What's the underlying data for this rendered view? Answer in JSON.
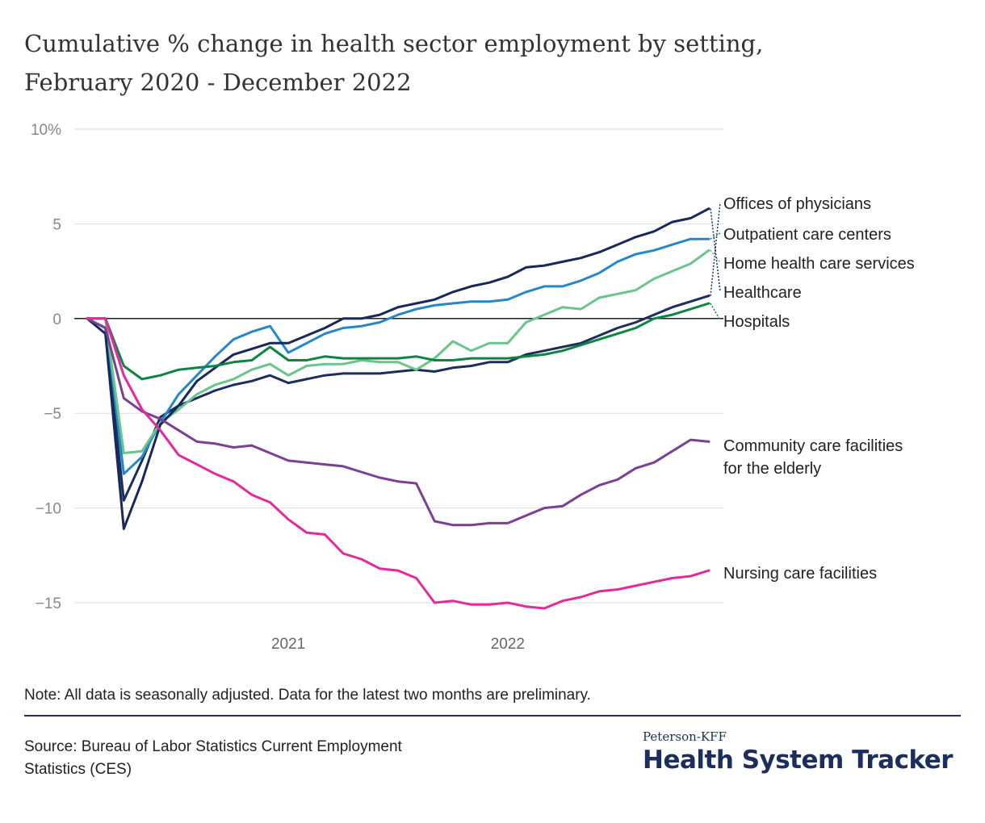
{
  "header": {
    "title_line1": "Cumulative % change in health sector employment by setting,",
    "title_line2": "February 2020 - December 2022"
  },
  "chart_data": {
    "type": "line",
    "title": "Cumulative % change in health sector employment by setting, February 2020 - December 2022",
    "xlabel": "",
    "ylabel": "",
    "x": [
      "2020-02",
      "2020-03",
      "2020-04",
      "2020-05",
      "2020-06",
      "2020-07",
      "2020-08",
      "2020-09",
      "2020-10",
      "2020-11",
      "2020-12",
      "2021-01",
      "2021-02",
      "2021-03",
      "2021-04",
      "2021-05",
      "2021-06",
      "2021-07",
      "2021-08",
      "2021-09",
      "2021-10",
      "2021-11",
      "2021-12",
      "2022-01",
      "2022-02",
      "2022-03",
      "2022-04",
      "2022-05",
      "2022-06",
      "2022-07",
      "2022-08",
      "2022-09",
      "2022-10",
      "2022-11",
      "2022-12"
    ],
    "x_ticks": [
      "2021",
      "2022"
    ],
    "x_tick_positions": [
      "2021-01",
      "2022-01"
    ],
    "ylim": [
      -15,
      10
    ],
    "y_ticks": [
      10,
      5,
      0,
      -5,
      -10,
      -15
    ],
    "y_tick_labels": [
      "10%",
      "5",
      "0",
      "−5",
      "−10",
      "−15"
    ],
    "grid": true,
    "legend": "direct-labels-right",
    "series": [
      {
        "name": "Offices of physicians",
        "color": "#1c2e5e",
        "values": [
          0,
          -0.5,
          -9.6,
          -7.5,
          -5.2,
          -4.6,
          -4.2,
          -3.8,
          -3.5,
          -3.3,
          -3.0,
          -3.4,
          -3.2,
          -3.0,
          -2.9,
          -2.9,
          -2.9,
          -2.8,
          -2.7,
          -2.8,
          -2.6,
          -2.5,
          -2.3,
          -2.3,
          -1.9,
          -1.7,
          -1.5,
          -1.3,
          -0.9,
          -0.5,
          -0.2,
          0.2,
          0.6,
          0.9,
          1.2
        ]
      },
      {
        "name": "Outpatient care centers",
        "color": "#2488c8",
        "values": [
          0,
          0,
          -8.2,
          -7.3,
          -5.5,
          -4.0,
          -3.0,
          -2.0,
          -1.1,
          -0.7,
          -0.4,
          -1.8,
          -1.3,
          -0.8,
          -0.5,
          -0.4,
          -0.2,
          0.2,
          0.5,
          0.7,
          0.8,
          0.9,
          0.9,
          1.0,
          1.4,
          1.7,
          1.7,
          2.0,
          2.4,
          3.0,
          3.4,
          3.6,
          3.9,
          4.2,
          4.2
        ]
      },
      {
        "name": "Home health care services",
        "color": "#69c58a",
        "values": [
          0,
          0,
          -7.1,
          -7.0,
          -5.5,
          -4.8,
          -4.0,
          -3.5,
          -3.2,
          -2.7,
          -2.4,
          -3.0,
          -2.5,
          -2.4,
          -2.4,
          -2.2,
          -2.3,
          -2.3,
          -2.7,
          -2.1,
          -1.2,
          -1.7,
          -1.3,
          -1.3,
          -0.2,
          0.2,
          0.6,
          0.5,
          1.1,
          1.3,
          1.5,
          2.1,
          2.5,
          2.9,
          3.6
        ]
      },
      {
        "name": "Healthcare",
        "color": "#17285a",
        "values": [
          0,
          -0.8,
          -11.1,
          -8.6,
          -5.6,
          -4.6,
          -3.3,
          -2.6,
          -1.9,
          -1.6,
          -1.3,
          -1.3,
          -0.9,
          -0.5,
          0.0,
          0.0,
          0.2,
          0.6,
          0.8,
          1.0,
          1.4,
          1.7,
          1.9,
          2.2,
          2.7,
          2.8,
          3.0,
          3.2,
          3.5,
          3.9,
          4.3,
          4.6,
          5.1,
          5.3,
          5.8
        ]
      },
      {
        "name": "Hospitals",
        "color": "#0e8442",
        "values": [
          0,
          0,
          -2.5,
          -3.2,
          -3.0,
          -2.7,
          -2.6,
          -2.5,
          -2.3,
          -2.2,
          -1.5,
          -2.2,
          -2.2,
          -2.0,
          -2.1,
          -2.1,
          -2.1,
          -2.1,
          -2.0,
          -2.2,
          -2.2,
          -2.1,
          -2.1,
          -2.1,
          -2.0,
          -1.9,
          -1.7,
          -1.4,
          -1.1,
          -0.8,
          -0.5,
          0.0,
          0.2,
          0.5,
          0.8
        ]
      },
      {
        "name": "Community care facilities for the elderly",
        "color": "#7b3f96",
        "values": [
          0,
          -0.5,
          -4.2,
          -4.9,
          -5.3,
          -5.9,
          -6.5,
          -6.6,
          -6.8,
          -6.7,
          -7.1,
          -7.5,
          -7.6,
          -7.7,
          -7.8,
          -8.1,
          -8.4,
          -8.6,
          -8.7,
          -10.7,
          -10.9,
          -10.9,
          -10.8,
          -10.8,
          -10.4,
          -10.0,
          -9.9,
          -9.3,
          -8.8,
          -8.5,
          -7.9,
          -7.6,
          -7.0,
          -6.4,
          -6.5
        ]
      },
      {
        "name": "Nursing care facilities",
        "color": "#e6289b",
        "values": [
          0,
          0,
          -3.0,
          -4.8,
          -5.9,
          -7.2,
          -7.7,
          -8.2,
          -8.6,
          -9.3,
          -9.7,
          -10.6,
          -11.3,
          -11.4,
          -12.4,
          -12.7,
          -13.2,
          -13.3,
          -13.7,
          -15.0,
          -14.9,
          -15.1,
          -15.1,
          -15.0,
          -15.2,
          -15.3,
          -14.9,
          -14.7,
          -14.4,
          -14.3,
          -14.1,
          -13.9,
          -13.7,
          -13.6,
          -13.3
        ]
      }
    ]
  },
  "labels": {
    "physicians": "Offices of physicians",
    "outpatient": "Outpatient care centers",
    "homehealth": "Home health care services",
    "healthcare": "Healthcare",
    "hospitals": "Hospitals",
    "community_line1": "Community care facilities",
    "community_line2": "for the elderly",
    "nursing": "Nursing care facilities"
  },
  "footer": {
    "note": "Note: All data is seasonally adjusted. Data for the latest two months are preliminary.",
    "source_line1": "Source: Bureau of Labor Statistics Current Employment",
    "source_line2": "Statistics (CES)",
    "brand_top": "Peterson-KFF",
    "brand_main": "Health System Tracker"
  }
}
